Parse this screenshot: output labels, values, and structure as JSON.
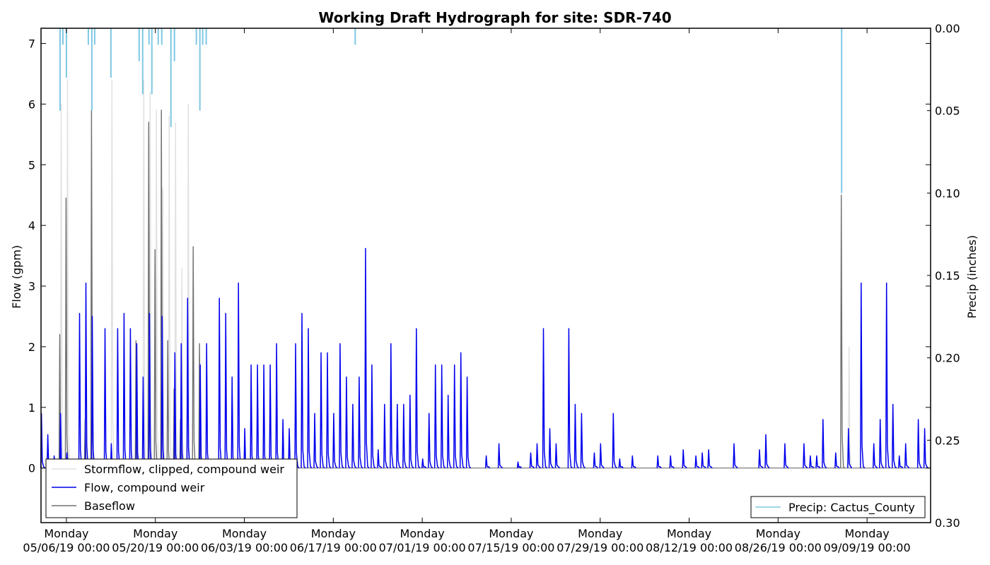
{
  "chart_data": {
    "type": "line",
    "title": "Working Draft Hydrograph for site: SDR-740",
    "ylabel": "Flow (gpm)",
    "y2label": "Precip (inches)",
    "ylim": [
      -0.9,
      7.25
    ],
    "y2lim": [
      0.3,
      0.0
    ],
    "y2_inverted": true,
    "grid": false,
    "yticks": [
      0,
      1,
      2,
      3,
      4,
      5,
      6,
      7
    ],
    "y2ticks": [
      "0.00",
      "0.05",
      "0.10",
      "0.15",
      "0.20",
      "0.25",
      "0.30"
    ],
    "xlim": [
      "2019-05-02",
      "2019-09-19"
    ],
    "xticks": [
      {
        "date": "2019-05-06",
        "line1": "Monday",
        "line2": "05/06/19 00:00"
      },
      {
        "date": "2019-05-20",
        "line1": "Monday",
        "line2": "05/20/19 00:00"
      },
      {
        "date": "2019-06-03",
        "line1": "Monday",
        "line2": "06/03/19 00:00"
      },
      {
        "date": "2019-06-17",
        "line1": "Monday",
        "line2": "06/17/19 00:00"
      },
      {
        "date": "2019-07-01",
        "line1": "Monday",
        "line2": "07/01/19 00:00"
      },
      {
        "date": "2019-07-15",
        "line1": "Monday",
        "line2": "07/15/19 00:00"
      },
      {
        "date": "2019-07-29",
        "line1": "Monday",
        "line2": "07/29/19 00:00"
      },
      {
        "date": "2019-08-12",
        "line1": "Monday",
        "line2": "08/12/19 00:00"
      },
      {
        "date": "2019-08-26",
        "line1": "Monday",
        "line2": "08/26/19 00:00"
      },
      {
        "date": "2019-09-09",
        "line1": "Monday",
        "line2": "09/09/19 00:00"
      }
    ],
    "legend_left": {
      "placement": "lower-left",
      "entries": [
        {
          "name": "Stormflow, clipped, compound weir",
          "color": "#e0e0e0"
        },
        {
          "name": "Flow, compound weir",
          "color": "#0000ee"
        },
        {
          "name": "Baseflow",
          "color": "#707070"
        }
      ]
    },
    "legend_right": {
      "placement": "lower-right",
      "entries": [
        {
          "name": "Precip: Cactus_County",
          "color": "#7ec8e3"
        }
      ]
    },
    "series": [
      {
        "name": "Flow, compound weir",
        "color": "#0000ee",
        "peaks": [
          [
            "2019-05-02",
            0.9
          ],
          [
            "2019-05-03",
            0.55
          ],
          [
            "2019-05-04",
            0.2
          ],
          [
            "2019-05-05",
            0.25
          ],
          [
            "2019-05-05",
            0.9
          ],
          [
            "2019-05-06",
            0.25
          ],
          [
            "2019-05-08",
            2.55
          ],
          [
            "2019-05-09",
            3.05
          ],
          [
            "2019-05-10",
            2.5
          ],
          [
            "2019-05-12",
            2.3
          ],
          [
            "2019-05-13",
            0.4
          ],
          [
            "2019-05-14",
            2.3
          ],
          [
            "2019-05-15",
            2.55
          ],
          [
            "2019-05-16",
            2.3
          ],
          [
            "2019-05-17",
            2.05
          ],
          [
            "2019-05-18",
            1.5
          ],
          [
            "2019-05-19",
            2.55
          ],
          [
            "2019-05-21",
            2.5
          ],
          [
            "2019-05-23",
            1.9
          ],
          [
            "2019-05-24",
            2.05
          ],
          [
            "2019-05-25",
            2.8
          ],
          [
            "2019-05-27",
            1.7
          ],
          [
            "2019-05-28",
            2.05
          ],
          [
            "2019-05-30",
            2.8
          ],
          [
            "2019-05-31",
            2.55
          ],
          [
            "2019-06-01",
            1.5
          ],
          [
            "2019-06-02",
            3.05
          ],
          [
            "2019-06-03",
            0.65
          ],
          [
            "2019-06-04",
            1.7
          ],
          [
            "2019-06-05",
            1.7
          ],
          [
            "2019-06-06",
            1.7
          ],
          [
            "2019-06-07",
            1.7
          ],
          [
            "2019-06-08",
            2.05
          ],
          [
            "2019-06-09",
            0.8
          ],
          [
            "2019-06-10",
            0.65
          ],
          [
            "2019-06-11",
            2.05
          ],
          [
            "2019-06-12",
            2.55
          ],
          [
            "2019-06-13",
            2.3
          ],
          [
            "2019-06-14",
            0.9
          ],
          [
            "2019-06-15",
            1.9
          ],
          [
            "2019-06-16",
            1.9
          ],
          [
            "2019-06-17",
            0.9
          ],
          [
            "2019-06-18",
            2.05
          ],
          [
            "2019-06-19",
            1.5
          ],
          [
            "2019-06-20",
            1.05
          ],
          [
            "2019-06-21",
            1.5
          ],
          [
            "2019-06-22",
            3.62
          ],
          [
            "2019-06-23",
            1.7
          ],
          [
            "2019-06-24",
            0.3
          ],
          [
            "2019-06-25",
            1.05
          ],
          [
            "2019-06-26",
            2.05
          ],
          [
            "2019-06-27",
            1.05
          ],
          [
            "2019-06-28",
            1.05
          ],
          [
            "2019-06-29",
            1.2
          ],
          [
            "2019-06-30",
            2.3
          ],
          [
            "2019-07-01",
            0.15
          ],
          [
            "2019-07-02",
            0.9
          ],
          [
            "2019-07-03",
            1.7
          ],
          [
            "2019-07-04",
            1.7
          ],
          [
            "2019-07-05",
            1.2
          ],
          [
            "2019-07-06",
            1.7
          ],
          [
            "2019-07-07",
            1.9
          ],
          [
            "2019-07-08",
            1.5
          ],
          [
            "2019-07-11",
            0.2
          ],
          [
            "2019-07-13",
            0.4
          ],
          [
            "2019-07-16",
            0.1
          ],
          [
            "2019-07-18",
            0.25
          ],
          [
            "2019-07-19",
            0.4
          ],
          [
            "2019-07-20",
            2.3
          ],
          [
            "2019-07-21",
            0.65
          ],
          [
            "2019-07-22",
            0.4
          ],
          [
            "2019-07-24",
            2.3
          ],
          [
            "2019-07-25",
            1.05
          ],
          [
            "2019-07-26",
            0.9
          ],
          [
            "2019-07-28",
            0.25
          ],
          [
            "2019-07-29",
            0.4
          ],
          [
            "2019-07-31",
            0.9
          ],
          [
            "2019-08-01",
            0.15
          ],
          [
            "2019-08-03",
            0.2
          ],
          [
            "2019-08-07",
            0.2
          ],
          [
            "2019-08-09",
            0.2
          ],
          [
            "2019-08-11",
            0.3
          ],
          [
            "2019-08-13",
            0.2
          ],
          [
            "2019-08-14",
            0.25
          ],
          [
            "2019-08-15",
            0.3
          ],
          [
            "2019-08-19",
            0.4
          ],
          [
            "2019-08-23",
            0.3
          ],
          [
            "2019-08-24",
            0.55
          ],
          [
            "2019-08-27",
            0.4
          ],
          [
            "2019-08-30",
            0.4
          ],
          [
            "2019-08-31",
            0.2
          ],
          [
            "2019-09-01",
            0.2
          ],
          [
            "2019-09-02",
            0.8
          ],
          [
            "2019-09-04",
            0.25
          ],
          [
            "2019-09-06",
            0.65
          ],
          [
            "2019-09-08",
            3.05
          ],
          [
            "2019-09-10",
            0.4
          ],
          [
            "2019-09-11",
            0.8
          ],
          [
            "2019-09-12",
            3.05
          ],
          [
            "2019-09-13",
            1.05
          ],
          [
            "2019-09-14",
            0.2
          ],
          [
            "2019-09-15",
            0.4
          ],
          [
            "2019-09-17",
            0.8
          ],
          [
            "2019-09-18",
            0.65
          ]
        ]
      },
      {
        "name": "Stormflow, clipped, compound weir",
        "color": "#e0e0e0",
        "peaks": [
          [
            "2019-05-05",
            6.0
          ],
          [
            "2019-05-06",
            6.4
          ],
          [
            "2019-05-13",
            6.4
          ],
          [
            "2019-05-18",
            6.4
          ],
          [
            "2019-05-19",
            6.2
          ],
          [
            "2019-05-20",
            5.9
          ],
          [
            "2019-05-21",
            4.6
          ],
          [
            "2019-05-22",
            5.8
          ],
          [
            "2019-05-23",
            5.7
          ],
          [
            "2019-05-24",
            3.3
          ],
          [
            "2019-05-25",
            6.0
          ],
          [
            "2019-09-06",
            2.0
          ]
        ]
      },
      {
        "name": "Baseflow",
        "color": "#707070",
        "peaks": [
          [
            "2019-05-05",
            2.2
          ],
          [
            "2019-05-06",
            4.45
          ],
          [
            "2019-05-09",
            0.8
          ],
          [
            "2019-05-10",
            5.9
          ],
          [
            "2019-05-17",
            2.1
          ],
          [
            "2019-05-19",
            5.7
          ],
          [
            "2019-05-20",
            3.6
          ],
          [
            "2019-05-21",
            5.9
          ],
          [
            "2019-05-22",
            2.1
          ],
          [
            "2019-05-23",
            1.3
          ],
          [
            "2019-05-24",
            0.8
          ],
          [
            "2019-05-26",
            3.65
          ],
          [
            "2019-05-27",
            2.05
          ],
          [
            "2019-09-05",
            4.5
          ]
        ]
      },
      {
        "name": "Precip: Cactus_County",
        "color": "#7ec8e3",
        "axis": "right",
        "bars": [
          [
            "2019-05-05",
            0.05
          ],
          [
            "2019-05-05",
            0.01
          ],
          [
            "2019-05-06",
            0.03
          ],
          [
            "2019-05-09",
            0.01
          ],
          [
            "2019-05-10",
            0.05
          ],
          [
            "2019-05-10",
            0.01
          ],
          [
            "2019-05-13",
            0.03
          ],
          [
            "2019-05-17",
            0.02
          ],
          [
            "2019-05-18",
            0.04
          ],
          [
            "2019-05-19",
            0.04
          ],
          [
            "2019-05-19",
            0.01
          ],
          [
            "2019-05-20",
            0.01
          ],
          [
            "2019-05-21",
            0.01
          ],
          [
            "2019-05-22",
            0.06
          ],
          [
            "2019-05-23",
            0.02
          ],
          [
            "2019-05-26",
            0.01
          ],
          [
            "2019-05-27",
            0.05
          ],
          [
            "2019-05-27",
            0.01
          ],
          [
            "2019-05-28",
            0.01
          ],
          [
            "2019-06-20",
            0.01
          ],
          [
            "2019-09-05",
            0.1
          ]
        ]
      }
    ]
  }
}
